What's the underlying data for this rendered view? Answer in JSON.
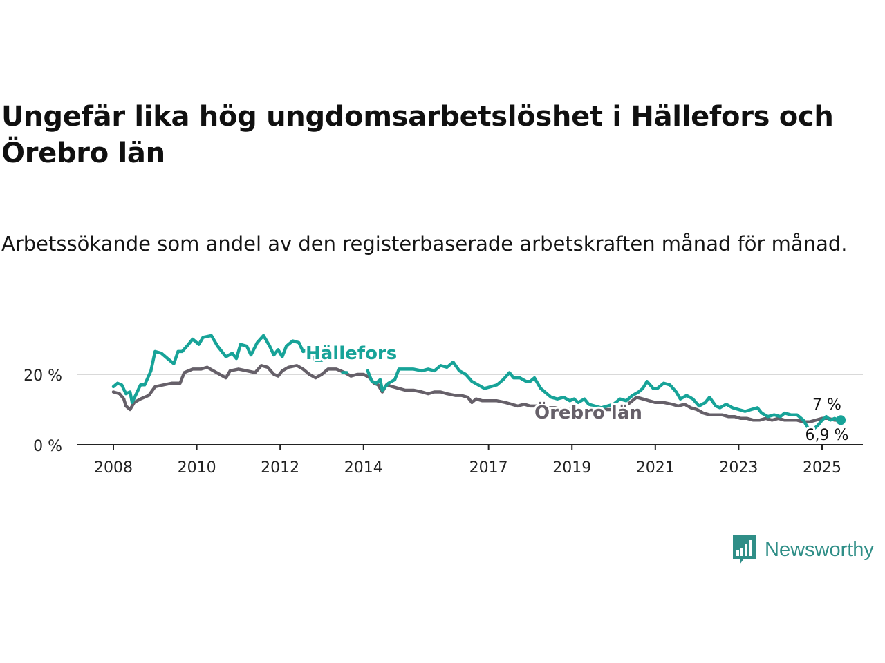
{
  "title": "Ungefär lika hög ungdomsarbetslöshet i Hällefors och Örebro län",
  "subtitle": "Arbetssökande som andel av den registerbaserade arbetskraften månad för månad.",
  "brand": {
    "name": "Newsworthy",
    "color": "#2f8e87",
    "icon": "bar-chart-speech-bubble-icon"
  },
  "chart_data": {
    "type": "line",
    "ylim": [
      0,
      30
    ],
    "y_ticks": [
      {
        "value": 0,
        "label": "0 %"
      },
      {
        "value": 20,
        "label": "20 %"
      }
    ],
    "x_ticks": [
      {
        "value": 2008,
        "label": "2008"
      },
      {
        "value": 2010,
        "label": "2010"
      },
      {
        "value": 2012,
        "label": "2012"
      },
      {
        "value": 2014,
        "label": "2014"
      },
      {
        "value": 2017,
        "label": "2017"
      },
      {
        "value": 2019,
        "label": "2019"
      },
      {
        "value": 2021,
        "label": "2021"
      },
      {
        "value": 2023,
        "label": "2023"
      },
      {
        "value": 2025,
        "label": "2025"
      }
    ],
    "grid": "horizontal",
    "series": [
      {
        "name": "Hällefors",
        "color": "#17a398",
        "end_label": "7 %",
        "points": [
          [
            2008.0,
            16.5
          ],
          [
            2008.1,
            17.5
          ],
          [
            2008.2,
            17.0
          ],
          [
            2008.3,
            14.5
          ],
          [
            2008.4,
            15.0
          ],
          [
            2008.45,
            12.0
          ],
          [
            2008.55,
            14.5
          ],
          [
            2008.65,
            17.0
          ],
          [
            2008.75,
            17.0
          ],
          [
            2008.9,
            21.0
          ],
          [
            2009.0,
            26.5
          ],
          [
            2009.15,
            26.0
          ],
          [
            2009.3,
            24.5
          ],
          [
            2009.45,
            23.0
          ],
          [
            2009.55,
            26.5
          ],
          [
            2009.65,
            26.5
          ],
          [
            2009.8,
            28.5
          ],
          [
            2009.9,
            30.0
          ],
          [
            2010.05,
            28.5
          ],
          [
            2010.15,
            30.5
          ],
          [
            2010.35,
            31.0
          ],
          [
            2010.5,
            28.0
          ],
          [
            2010.7,
            25.0
          ],
          [
            2010.85,
            26.0
          ],
          [
            2010.95,
            24.5
          ],
          [
            2011.05,
            28.5
          ],
          [
            2011.2,
            28.0
          ],
          [
            2011.3,
            25.5
          ],
          [
            2011.45,
            29.0
          ],
          [
            2011.6,
            31.0
          ],
          [
            2011.75,
            28.0
          ],
          [
            2011.85,
            25.5
          ],
          [
            2011.95,
            27.0
          ],
          [
            2012.05,
            25.0
          ],
          [
            2012.15,
            28.0
          ],
          [
            2012.3,
            29.5
          ],
          [
            2012.45,
            29.0
          ],
          [
            2012.55,
            26.5
          ],
          [
            2012.7,
            27.0
          ],
          [
            2012.85,
            24.0
          ],
          [
            2013.0,
            24.0
          ]
        ],
        "points_2": [
          [
            2013.5,
            20.5
          ],
          [
            2013.6,
            20.5
          ]
        ],
        "points_3": [
          [
            2014.1,
            21.0
          ],
          [
            2014.2,
            18.0
          ],
          [
            2014.3,
            17.5
          ],
          [
            2014.4,
            18.5
          ],
          [
            2014.45,
            15.5
          ],
          [
            2014.6,
            17.5
          ],
          [
            2014.75,
            18.5
          ],
          [
            2014.85,
            21.5
          ],
          [
            2015.0,
            21.5
          ],
          [
            2015.2,
            21.5
          ],
          [
            2015.4,
            21.0
          ],
          [
            2015.55,
            21.5
          ],
          [
            2015.7,
            21.0
          ],
          [
            2015.85,
            22.5
          ],
          [
            2016.0,
            22.0
          ],
          [
            2016.15,
            23.5
          ],
          [
            2016.3,
            21.0
          ],
          [
            2016.45,
            20.0
          ],
          [
            2016.6,
            18.0
          ],
          [
            2016.75,
            17.0
          ],
          [
            2016.9,
            16.0
          ],
          [
            2017.05,
            16.5
          ],
          [
            2017.2,
            17.0
          ],
          [
            2017.35,
            18.5
          ],
          [
            2017.5,
            20.5
          ],
          [
            2017.6,
            19.0
          ],
          [
            2017.75,
            19.0
          ],
          [
            2017.9,
            18.0
          ],
          [
            2018.0,
            18.0
          ],
          [
            2018.1,
            19.0
          ],
          [
            2018.25,
            16.0
          ],
          [
            2018.35,
            15.0
          ],
          [
            2018.5,
            13.5
          ],
          [
            2018.65,
            13.0
          ],
          [
            2018.8,
            13.5
          ],
          [
            2018.95,
            12.5
          ],
          [
            2019.05,
            13.0
          ],
          [
            2019.15,
            12.0
          ],
          [
            2019.3,
            13.0
          ],
          [
            2019.4,
            11.5
          ],
          [
            2019.55,
            11.0
          ],
          [
            2019.7,
            10.5
          ],
          [
            2019.85,
            11.0
          ],
          [
            2020.0,
            11.5
          ],
          [
            2020.15,
            13.0
          ],
          [
            2020.3,
            12.5
          ],
          [
            2020.45,
            14.0
          ],
          [
            2020.6,
            15.0
          ],
          [
            2020.7,
            16.0
          ],
          [
            2020.8,
            18.0
          ],
          [
            2020.95,
            16.0
          ],
          [
            2021.05,
            16.0
          ],
          [
            2021.2,
            17.5
          ],
          [
            2021.35,
            17.0
          ],
          [
            2021.5,
            15.0
          ],
          [
            2021.6,
            13.0
          ],
          [
            2021.75,
            14.0
          ],
          [
            2021.9,
            13.0
          ],
          [
            2022.05,
            11.0
          ],
          [
            2022.2,
            12.0
          ],
          [
            2022.3,
            13.5
          ],
          [
            2022.45,
            11.0
          ],
          [
            2022.55,
            10.5
          ],
          [
            2022.7,
            11.5
          ],
          [
            2022.85,
            10.5
          ],
          [
            2023.0,
            10.0
          ],
          [
            2023.15,
            9.5
          ],
          [
            2023.3,
            10.0
          ],
          [
            2023.45,
            10.5
          ],
          [
            2023.55,
            9.0
          ],
          [
            2023.7,
            8.0
          ],
          [
            2023.85,
            8.5
          ],
          [
            2024.0,
            8.0
          ],
          [
            2024.1,
            9.0
          ],
          [
            2024.25,
            8.5
          ],
          [
            2024.4,
            8.5
          ],
          [
            2024.55,
            7.0
          ],
          [
            2024.65,
            5.0
          ],
          [
            2024.75,
            4.0
          ],
          [
            2024.9,
            5.5
          ],
          [
            2025.0,
            7.0
          ],
          [
            2025.1,
            8.0
          ],
          [
            2025.2,
            7.0
          ],
          [
            2025.3,
            7.5
          ],
          [
            2025.4,
            7.0
          ],
          [
            2025.45,
            7.0
          ]
        ]
      },
      {
        "name": "Örebro län",
        "color": "#666069",
        "end_label": "6,9 %",
        "points": [
          [
            2008.0,
            15.0
          ],
          [
            2008.15,
            14.5
          ],
          [
            2008.25,
            13.0
          ],
          [
            2008.3,
            11.0
          ],
          [
            2008.4,
            10.0
          ],
          [
            2008.5,
            12.0
          ],
          [
            2008.65,
            13.0
          ],
          [
            2008.85,
            14.0
          ],
          [
            2009.0,
            16.5
          ],
          [
            2009.2,
            17.0
          ],
          [
            2009.4,
            17.5
          ],
          [
            2009.6,
            17.5
          ],
          [
            2009.7,
            20.5
          ],
          [
            2009.9,
            21.5
          ],
          [
            2010.1,
            21.5
          ],
          [
            2010.25,
            22.0
          ],
          [
            2010.4,
            21.0
          ],
          [
            2010.55,
            20.0
          ],
          [
            2010.7,
            19.0
          ],
          [
            2010.8,
            21.0
          ],
          [
            2011.0,
            21.5
          ],
          [
            2011.2,
            21.0
          ],
          [
            2011.4,
            20.5
          ],
          [
            2011.55,
            22.5
          ],
          [
            2011.7,
            22.0
          ],
          [
            2011.85,
            20.0
          ],
          [
            2011.95,
            19.5
          ],
          [
            2012.05,
            21.0
          ],
          [
            2012.2,
            22.0
          ],
          [
            2012.4,
            22.5
          ],
          [
            2012.55,
            21.5
          ],
          [
            2012.7,
            20.0
          ],
          [
            2012.85,
            19.0
          ],
          [
            2013.0,
            20.0
          ],
          [
            2013.15,
            21.5
          ],
          [
            2013.35,
            21.5
          ],
          [
            2013.55,
            20.5
          ],
          [
            2013.7,
            19.5
          ],
          [
            2013.85,
            20.0
          ],
          [
            2014.0,
            20.0
          ],
          [
            2014.15,
            19.0
          ],
          [
            2014.25,
            17.5
          ],
          [
            2014.35,
            17.0
          ],
          [
            2014.45,
            15.0
          ],
          [
            2014.55,
            17.0
          ],
          [
            2014.7,
            16.5
          ],
          [
            2014.85,
            16.0
          ],
          [
            2015.0,
            15.5
          ],
          [
            2015.2,
            15.5
          ],
          [
            2015.4,
            15.0
          ],
          [
            2015.55,
            14.5
          ],
          [
            2015.7,
            15.0
          ],
          [
            2015.85,
            15.0
          ],
          [
            2016.0,
            14.5
          ],
          [
            2016.2,
            14.0
          ],
          [
            2016.35,
            14.0
          ],
          [
            2016.5,
            13.5
          ],
          [
            2016.6,
            12.0
          ],
          [
            2016.7,
            13.0
          ],
          [
            2016.85,
            12.5
          ],
          [
            2017.0,
            12.5
          ],
          [
            2017.2,
            12.5
          ],
          [
            2017.4,
            12.0
          ],
          [
            2017.55,
            11.5
          ],
          [
            2017.7,
            11.0
          ],
          [
            2017.85,
            11.5
          ],
          [
            2018.0,
            11.0
          ],
          [
            2018.2,
            11.0
          ],
          [
            2018.4,
            10.5
          ],
          [
            2018.6,
            10.5
          ],
          [
            2018.8,
            10.0
          ],
          [
            2019.0,
            10.0
          ],
          [
            2019.2,
            9.5
          ],
          [
            2019.4,
            10.0
          ],
          [
            2019.6,
            10.0
          ],
          [
            2019.8,
            10.0
          ],
          [
            2020.0,
            10.0
          ],
          [
            2020.2,
            10.5
          ],
          [
            2020.4,
            12.0
          ],
          [
            2020.55,
            13.5
          ],
          [
            2020.7,
            13.0
          ],
          [
            2020.85,
            12.5
          ],
          [
            2021.0,
            12.0
          ],
          [
            2021.2,
            12.0
          ],
          [
            2021.4,
            11.5
          ],
          [
            2021.55,
            11.0
          ],
          [
            2021.7,
            11.5
          ],
          [
            2021.85,
            10.5
          ],
          [
            2022.0,
            10.0
          ],
          [
            2022.15,
            9.0
          ],
          [
            2022.3,
            8.5
          ],
          [
            2022.45,
            8.5
          ],
          [
            2022.6,
            8.5
          ],
          [
            2022.75,
            8.0
          ],
          [
            2022.9,
            8.0
          ],
          [
            2023.05,
            7.5
          ],
          [
            2023.2,
            7.5
          ],
          [
            2023.35,
            7.0
          ],
          [
            2023.5,
            7.0
          ],
          [
            2023.65,
            7.5
          ],
          [
            2023.8,
            7.0
          ],
          [
            2023.95,
            7.5
          ],
          [
            2024.1,
            7.0
          ],
          [
            2024.25,
            7.0
          ],
          [
            2024.4,
            7.0
          ],
          [
            2024.55,
            6.5
          ],
          [
            2024.7,
            6.5
          ],
          [
            2024.85,
            7.0
          ],
          [
            2025.0,
            7.5
          ],
          [
            2025.15,
            7.5
          ],
          [
            2025.3,
            7.0
          ],
          [
            2025.45,
            6.9
          ]
        ]
      }
    ]
  }
}
